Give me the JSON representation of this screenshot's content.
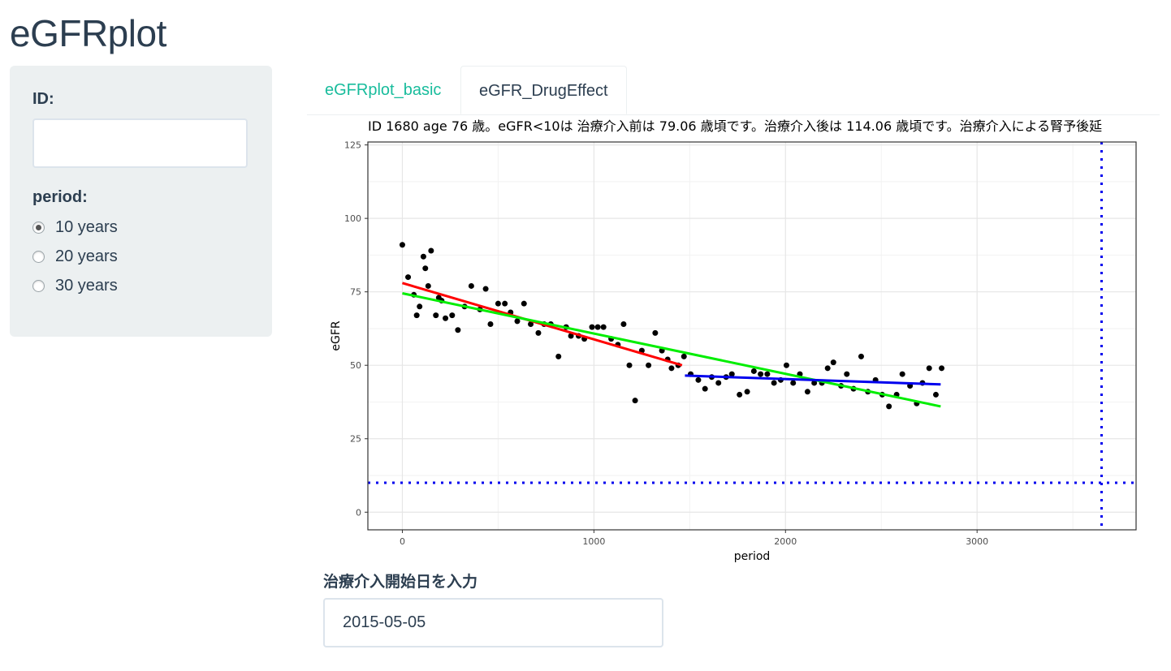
{
  "app": {
    "title": "eGFRplot"
  },
  "sidebar": {
    "id_label": "ID:",
    "id_value": "",
    "period_label": "period:",
    "period_options": [
      "10 years",
      "20 years",
      "30 years"
    ],
    "period_selected": "10 years"
  },
  "tabs": [
    {
      "label": "eGFRplot_basic",
      "active": false
    },
    {
      "label": "eGFR_DrugEffect",
      "active": true
    }
  ],
  "chart_data": {
    "type": "scatter",
    "title": "ID 1680 age 76 歳。eGFR<10は 治療介入前は 79.06 歳頃です。治療介入後は 114.06 歳頃です。治療介入による腎予後延",
    "xlabel": "period",
    "ylabel": "eGFR",
    "xlim": [
      -180,
      3830
    ],
    "ylim": [
      -6,
      126
    ],
    "xticks": [
      0,
      1000,
      2000,
      3000
    ],
    "yticks": [
      0,
      25,
      50,
      75,
      100,
      125
    ],
    "grid": true,
    "points": [
      [
        0,
        91
      ],
      [
        30,
        80
      ],
      [
        60,
        74
      ],
      [
        75,
        67
      ],
      [
        90,
        70
      ],
      [
        110,
        87
      ],
      [
        120,
        83
      ],
      [
        135,
        77
      ],
      [
        150,
        89
      ],
      [
        175,
        67
      ],
      [
        190,
        73
      ],
      [
        205,
        72
      ],
      [
        225,
        66
      ],
      [
        260,
        67
      ],
      [
        290,
        62
      ],
      [
        325,
        70
      ],
      [
        360,
        77
      ],
      [
        405,
        69
      ],
      [
        435,
        76
      ],
      [
        460,
        64
      ],
      [
        500,
        71
      ],
      [
        535,
        71
      ],
      [
        565,
        68
      ],
      [
        600,
        65
      ],
      [
        635,
        71
      ],
      [
        670,
        64
      ],
      [
        710,
        61
      ],
      [
        740,
        64
      ],
      [
        775,
        64
      ],
      [
        815,
        53
      ],
      [
        855,
        63
      ],
      [
        880,
        60
      ],
      [
        920,
        60
      ],
      [
        950,
        59
      ],
      [
        990,
        63
      ],
      [
        1020,
        63
      ],
      [
        1050,
        63
      ],
      [
        1090,
        59
      ],
      [
        1125,
        57
      ],
      [
        1155,
        64
      ],
      [
        1185,
        50
      ],
      [
        1215,
        38
      ],
      [
        1250,
        55
      ],
      [
        1285,
        50
      ],
      [
        1320,
        61
      ],
      [
        1355,
        55
      ],
      [
        1385,
        52
      ],
      [
        1405,
        49
      ],
      [
        1440,
        50
      ],
      [
        1470,
        53
      ],
      [
        1505,
        47
      ],
      [
        1545,
        45
      ],
      [
        1580,
        42
      ],
      [
        1615,
        46
      ],
      [
        1650,
        44
      ],
      [
        1690,
        46
      ],
      [
        1720,
        47
      ],
      [
        1760,
        40
      ],
      [
        1800,
        41
      ],
      [
        1835,
        48
      ],
      [
        1870,
        47
      ],
      [
        1905,
        47
      ],
      [
        1940,
        44
      ],
      [
        1975,
        45
      ],
      [
        2005,
        50
      ],
      [
        2040,
        44
      ],
      [
        2075,
        47
      ],
      [
        2115,
        41
      ],
      [
        2150,
        44
      ],
      [
        2190,
        44
      ],
      [
        2220,
        49
      ],
      [
        2250,
        51
      ],
      [
        2290,
        43
      ],
      [
        2320,
        47
      ],
      [
        2355,
        42
      ],
      [
        2395,
        53
      ],
      [
        2430,
        41
      ],
      [
        2470,
        45
      ],
      [
        2505,
        40
      ],
      [
        2540,
        36
      ],
      [
        2580,
        40
      ],
      [
        2610,
        47
      ],
      [
        2650,
        43
      ],
      [
        2685,
        37
      ],
      [
        2715,
        44
      ],
      [
        2750,
        49
      ],
      [
        2785,
        40
      ],
      [
        2815,
        49
      ]
    ],
    "series": [
      {
        "color": "#ff0000",
        "x": [
          0,
          1460
        ],
        "y": [
          78,
          50
        ]
      },
      {
        "color": "#00ee00",
        "x": [
          0,
          2810
        ],
        "y": [
          74.5,
          36
        ]
      },
      {
        "color": "#0000ee",
        "x": [
          1475,
          2810
        ],
        "y": [
          46.5,
          43.5
        ]
      }
    ],
    "reference_lines": [
      {
        "axis": "y",
        "value": 10,
        "style": "dotted",
        "color": "#0000ee"
      },
      {
        "axis": "x",
        "value": 3650,
        "style": "dotted",
        "color": "#0000ee"
      }
    ]
  },
  "date_input": {
    "label": "治療介入開始日を入力",
    "value": "2015-05-05"
  }
}
